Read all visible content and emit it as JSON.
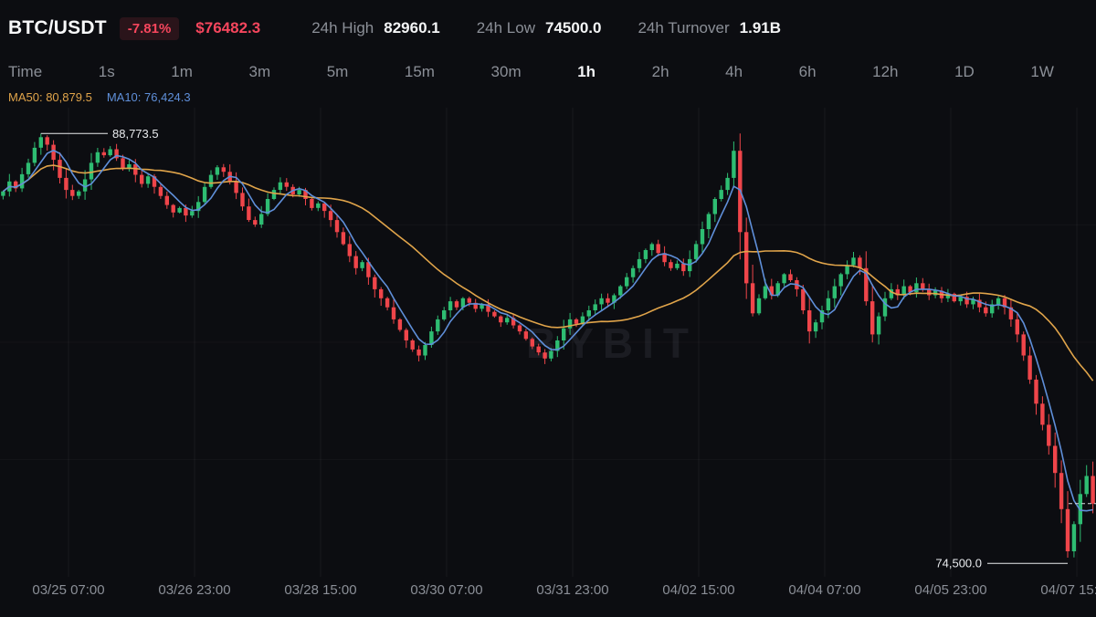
{
  "header": {
    "symbol": "BTC/USDT",
    "change_pct": "-7.81%",
    "last_price": "$76482.3",
    "stats": [
      {
        "label": "24h High",
        "value": "82960.1"
      },
      {
        "label": "24h Low",
        "value": "74500.0"
      },
      {
        "label": "24h Turnover",
        "value": "1.91B"
      }
    ]
  },
  "timeframes": {
    "options": [
      "Time",
      "1s",
      "1m",
      "3m",
      "5m",
      "15m",
      "30m",
      "1h",
      "2h",
      "4h",
      "6h",
      "12h",
      "1D",
      "1W"
    ],
    "selected": "1h"
  },
  "indicators": {
    "ma50": {
      "label": "MA50:",
      "value": "80,879.5"
    },
    "ma10": {
      "label": "MA10:",
      "value": "76,424.3"
    }
  },
  "watermark": "BYBIT",
  "colors": {
    "up": "#2ebd72",
    "down": "#ef454a",
    "ma50": "#e0a44a",
    "ma10": "#5f8fd9",
    "accent_red": "#f6465d",
    "annotation": "#e9ebee"
  },
  "chart_data": {
    "type": "candlestick",
    "symbol": "BTC/USDT",
    "interval": "1h",
    "hours_per_candle": 2,
    "ma50_hours": 50,
    "ma10_hours": 10,
    "ylim": [
      74050,
      89630
    ],
    "x_labels": [
      "03/25 07:00",
      "03/26 23:00",
      "03/28 15:00",
      "03/30 07:00",
      "03/31 23:00",
      "04/02 15:00",
      "04/04 07:00",
      "04/05 23:00",
      "04/07 15:00"
    ],
    "annotations": {
      "high": {
        "label": "88,773.5",
        "value": 88773.5
      },
      "low": {
        "label": "74,500.0",
        "value": 74500.0
      },
      "last": {
        "value": 76482.3
      }
    },
    "closes": [
      86850,
      87180,
      86950,
      87420,
      87800,
      88300,
      88650,
      88400,
      87900,
      87300,
      86900,
      86700,
      86850,
      87250,
      87800,
      88150,
      88050,
      88250,
      87950,
      87600,
      87750,
      87400,
      87100,
      87350,
      87000,
      86700,
      86400,
      86150,
      86300,
      86050,
      86200,
      86500,
      87000,
      87400,
      87650,
      87500,
      87200,
      86800,
      86350,
      85900,
      85750,
      86100,
      86600,
      86900,
      87150,
      87000,
      86750,
      86900,
      86600,
      86300,
      86450,
      86200,
      85900,
      85500,
      85100,
      84700,
      84300,
      84500,
      84000,
      83600,
      83300,
      83000,
      82600,
      82250,
      81900,
      81600,
      81400,
      81750,
      82200,
      82600,
      82900,
      83200,
      83000,
      83300,
      83150,
      82950,
      83100,
      82850,
      82700,
      82500,
      82650,
      82400,
      82200,
      81950,
      81700,
      81500,
      81300,
      81550,
      81900,
      82300,
      82600,
      82450,
      82700,
      82900,
      83100,
      83300,
      83150,
      83400,
      83700,
      84000,
      84300,
      84600,
      84900,
      85100,
      84800,
      84500,
      84300,
      84450,
      84200,
      84600,
      85100,
      85600,
      86100,
      86600,
      86900,
      87300,
      88200,
      85500,
      83800,
      82800,
      83300,
      83700,
      83400,
      83800,
      84100,
      83900,
      83600,
      82900,
      82200,
      82500,
      82900,
      83300,
      83700,
      84100,
      84400,
      84650,
      84300,
      83200,
      82100,
      82700,
      83300,
      83600,
      83400,
      83700,
      83500,
      83800,
      83600,
      83400,
      83550,
      83300,
      83450,
      83200,
      83350,
      83100,
      83250,
      83000,
      82800,
      83100,
      83300,
      83000,
      82600,
      82100,
      81400,
      80600,
      79800,
      79100,
      78400,
      77500,
      76300,
      74900,
      75800,
      76800,
      77400,
      76482.3
    ]
  }
}
